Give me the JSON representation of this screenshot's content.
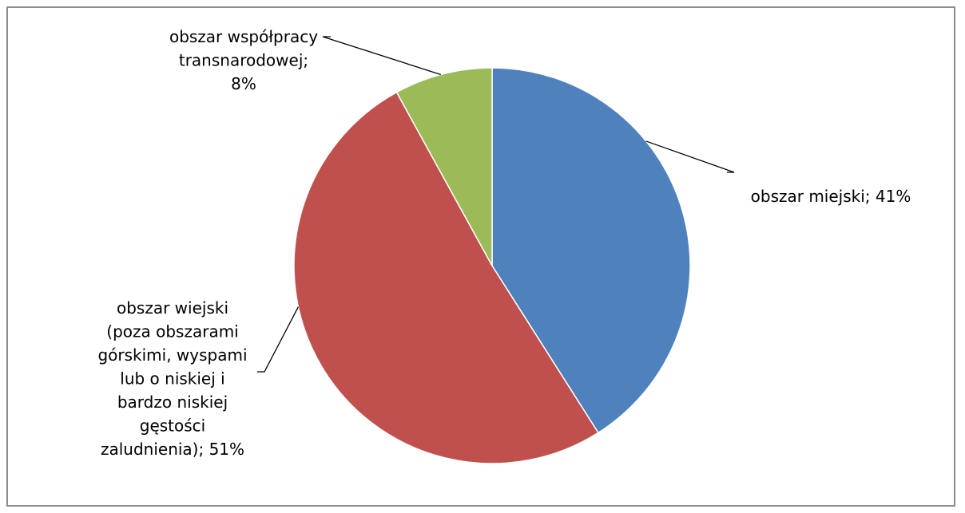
{
  "chart_data": {
    "type": "pie",
    "title": "",
    "legend": "none",
    "categories": [
      "obszar miejski",
      "obszar wiejski (poza obszarami górskimi, wyspami lub o niskiej i bardzo niskiej gęstości zaludnienia)",
      "obszar współpracy transnarodowej"
    ],
    "values": [
      41,
      51,
      8
    ],
    "unit": "%",
    "colors": [
      "#4f81bd",
      "#c0504d",
      "#9bbb59"
    ],
    "start_angle": "top (12 o'clock)",
    "direction": "clockwise",
    "data_labels": [
      [
        "obszar miejski; 41%"
      ],
      [
        "obszar wiejski",
        "(poza obszarami",
        "górskimi, wyspami",
        "lub o niskiej i",
        "bardzo niskiej",
        "gęstości",
        "zaludnienia); 51%"
      ],
      [
        "obszar współpracy",
        "transnarodowej;",
        "8%"
      ]
    ]
  }
}
